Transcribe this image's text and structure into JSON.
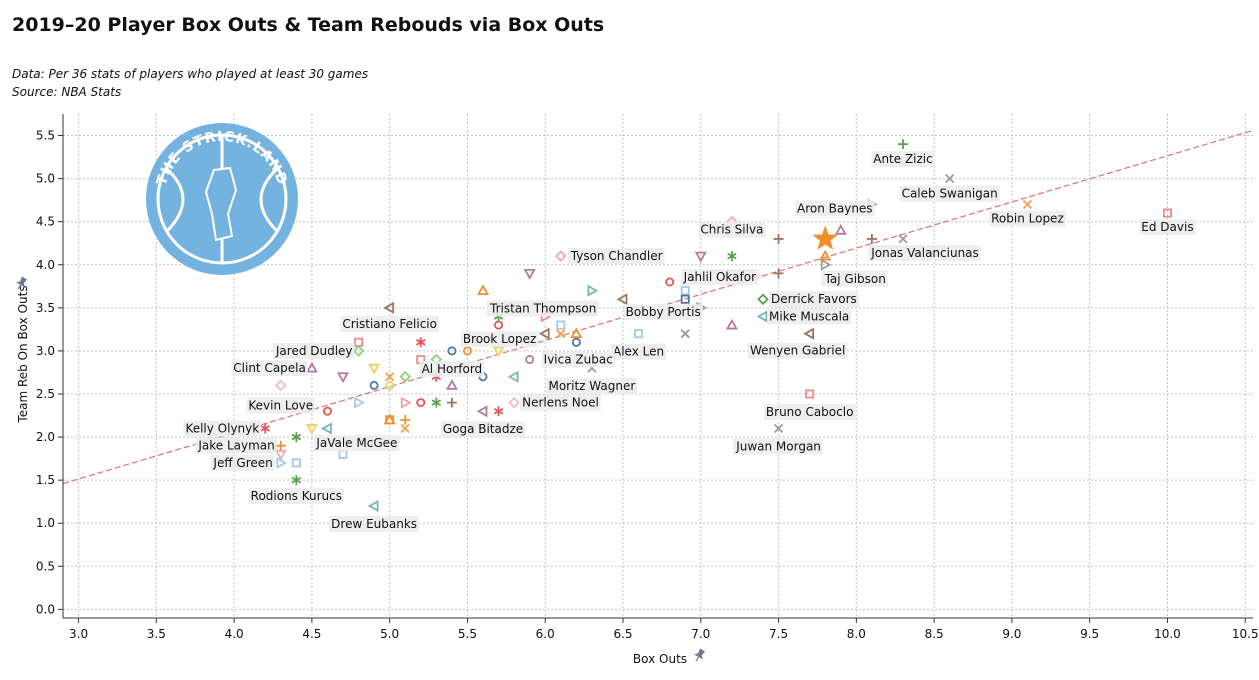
{
  "title": "2019–20 Player Box Outs & Team Rebouds via Box Outs",
  "subtitle_line1": "Data: Per 36 stats of players who played at least 30 games",
  "subtitle_line2": "Source: NBA Stats",
  "logo_text": "THE STRICK.LAND",
  "chart_data": {
    "type": "scatter",
    "xlabel": "Box Outs",
    "ylabel": "Team Reb On Box Outs",
    "xlim": [
      2.9,
      10.55
    ],
    "ylim": [
      -0.1,
      5.75
    ],
    "x_ticks": [
      "3.0",
      "3.5",
      "4.0",
      "4.5",
      "5.0",
      "5.5",
      "6.0",
      "6.5",
      "7.0",
      "7.5",
      "8.0",
      "8.5",
      "9.0",
      "9.5",
      "10.0",
      "10.5"
    ],
    "y_ticks": [
      "0.0",
      "0.5",
      "1.0",
      "1.5",
      "2.0",
      "2.5",
      "3.0",
      "3.5",
      "4.0",
      "4.5",
      "5.0",
      "5.5"
    ],
    "grid": true,
    "trendline": {
      "x": [
        2.9,
        10.55
      ],
      "y": [
        1.46,
        5.56
      ],
      "color": "#e07070"
    },
    "highlight_color": "#f28e2b",
    "labeled_points": [
      {
        "name": "Ante Zizic",
        "x": 8.3,
        "y": 5.4,
        "shape": "plus",
        "color": "#59a14f"
      },
      {
        "name": "Caleb Swanigan",
        "x": 8.6,
        "y": 5.0,
        "shape": "x",
        "color": "#9c9c9c"
      },
      {
        "name": "Robin Lopez",
        "x": 9.1,
        "y": 4.7,
        "shape": "x",
        "color": "#f0a050"
      },
      {
        "name": "Ed Davis",
        "x": 10.0,
        "y": 4.6,
        "shape": "square",
        "color": "#f08a8a"
      },
      {
        "name": "Aron Baynes",
        "x": 7.9,
        "y": 4.4,
        "shape": "triangle-up",
        "color": "#b07aa1"
      },
      {
        "name": "Jonas Valanciunas",
        "x": 8.3,
        "y": 4.3,
        "shape": "x",
        "color": "#9c9c9c"
      },
      {
        "name": "Chris Silva",
        "x": 7.2,
        "y": 4.5,
        "shape": "diamond",
        "color": "#f4a6b8"
      },
      {
        "name": "Taj Gibson",
        "x": 7.8,
        "y": 4.0,
        "shape": "triangle-right",
        "color": "#9c9c9c"
      },
      {
        "name": "Tyson Chandler",
        "x": 6.1,
        "y": 4.1,
        "shape": "diamond",
        "color": "#f4a6b8"
      },
      {
        "name": "Jahlil Okafor",
        "x": 6.8,
        "y": 3.8,
        "shape": "circle",
        "color": "#e15759"
      },
      {
        "name": "Derrick Favors",
        "x": 7.4,
        "y": 3.6,
        "shape": "diamond",
        "color": "#59a14f"
      },
      {
        "name": "Mike Muscala",
        "x": 7.4,
        "y": 3.4,
        "shape": "triangle-left",
        "color": "#76b7b2"
      },
      {
        "name": "Tristan Thompson",
        "x": 6.0,
        "y": 3.4,
        "shape": "triangle-right",
        "color": "#f08a8a"
      },
      {
        "name": "Bobby Portis",
        "x": 6.9,
        "y": 3.6,
        "shape": "square",
        "color": "#4e79a7"
      },
      {
        "name": "Wenyen Gabriel",
        "x": 7.7,
        "y": 3.2,
        "shape": "triangle-left",
        "color": "#9c755f"
      },
      {
        "name": "Cristiano Felicio",
        "x": 5.0,
        "y": 3.5,
        "shape": "triangle-left",
        "color": "#9c755f"
      },
      {
        "name": "Brook Lopez",
        "x": 5.7,
        "y": 3.3,
        "shape": "circle",
        "color": "#e15759"
      },
      {
        "name": "Alex Len",
        "x": 6.6,
        "y": 3.2,
        "shape": "square",
        "color": "#a0cbe8"
      },
      {
        "name": "Jared Dudley",
        "x": 4.8,
        "y": 3.0,
        "shape": "diamond",
        "color": "#8cd17d"
      },
      {
        "name": "Ivica Zubac",
        "x": 5.9,
        "y": 2.9,
        "shape": "circle",
        "color": "#b07aa1"
      },
      {
        "name": "Al Horford",
        "x": 5.4,
        "y": 3.0,
        "shape": "circle",
        "color": "#4e79a7"
      },
      {
        "name": "Clint Capela",
        "x": 4.5,
        "y": 2.8,
        "shape": "triangle-up",
        "color": "#b07aa1"
      },
      {
        "name": "Moritz Wagner",
        "x": 6.3,
        "y": 2.8,
        "shape": "x",
        "color": "#9c9c9c"
      },
      {
        "name": "Kevin Love",
        "x": 4.3,
        "y": 2.6,
        "shape": "diamond",
        "color": "#f4b6c8"
      },
      {
        "name": "Nerlens Noel",
        "x": 5.8,
        "y": 2.4,
        "shape": "diamond",
        "color": "#f4b6c8"
      },
      {
        "name": "Bruno Caboclo",
        "x": 7.7,
        "y": 2.5,
        "shape": "square",
        "color": "#f08a8a"
      },
      {
        "name": "Goga Bitadze",
        "x": 5.6,
        "y": 2.3,
        "shape": "triangle-left",
        "color": "#b07aa1"
      },
      {
        "name": "Kelly Olynyk",
        "x": 4.2,
        "y": 2.1,
        "shape": "asterisk",
        "color": "#e15759"
      },
      {
        "name": "JaVale McGee",
        "x": 4.4,
        "y": 2.0,
        "shape": "asterisk",
        "color": "#59a14f"
      },
      {
        "name": "Juwan Morgan",
        "x": 7.5,
        "y": 2.1,
        "shape": "x",
        "color": "#9c9c9c"
      },
      {
        "name": "Jake Layman",
        "x": 4.3,
        "y": 1.9,
        "shape": "plus",
        "color": "#f28e2b"
      },
      {
        "name": "Jeff Green",
        "x": 4.3,
        "y": 1.7,
        "shape": "triangle-right",
        "color": "#a0cbe8"
      },
      {
        "name": "Rodions Kurucs",
        "x": 4.4,
        "y": 1.5,
        "shape": "asterisk",
        "color": "#59a14f"
      },
      {
        "name": "Drew Eubanks",
        "x": 4.9,
        "y": 1.2,
        "shape": "triangle-left",
        "color": "#76b7b2"
      }
    ],
    "unlabeled_points": [
      {
        "x": 7.8,
        "y": 4.3,
        "shape": "star",
        "color": "#f28e2b"
      },
      {
        "x": 8.1,
        "y": 4.7,
        "shape": "triangle-right",
        "color": "#f0a0a0"
      },
      {
        "x": 8.1,
        "y": 4.3,
        "shape": "plus",
        "color": "#9c755f"
      },
      {
        "x": 7.8,
        "y": 4.1,
        "shape": "triangle-up",
        "color": "#f28e2b"
      },
      {
        "x": 7.5,
        "y": 4.3,
        "shape": "plus",
        "color": "#9c755f"
      },
      {
        "x": 7.5,
        "y": 3.9,
        "shape": "plus",
        "color": "#9c755f"
      },
      {
        "x": 7.2,
        "y": 4.1,
        "shape": "asterisk",
        "color": "#59a14f"
      },
      {
        "x": 7.0,
        "y": 4.1,
        "shape": "triangle-down",
        "color": "#b07aa1"
      },
      {
        "x": 7.0,
        "y": 3.5,
        "shape": "triangle-right",
        "color": "#76b7b2"
      },
      {
        "x": 6.9,
        "y": 3.7,
        "shape": "square",
        "color": "#a0cbe8"
      },
      {
        "x": 6.9,
        "y": 3.2,
        "shape": "x",
        "color": "#9c9c9c"
      },
      {
        "x": 7.2,
        "y": 3.3,
        "shape": "triangle-up",
        "color": "#b07aa1"
      },
      {
        "x": 5.9,
        "y": 3.9,
        "shape": "triangle-down",
        "color": "#b07aa1"
      },
      {
        "x": 6.3,
        "y": 3.7,
        "shape": "triangle-right",
        "color": "#76b7b2"
      },
      {
        "x": 6.5,
        "y": 3.6,
        "shape": "triangle-left",
        "color": "#9c755f"
      },
      {
        "x": 5.6,
        "y": 3.7,
        "shape": "triangle-up",
        "color": "#f28e2b"
      },
      {
        "x": 5.7,
        "y": 3.4,
        "shape": "asterisk",
        "color": "#59a14f"
      },
      {
        "x": 6.1,
        "y": 3.3,
        "shape": "square",
        "color": "#a0cbe8"
      },
      {
        "x": 6.1,
        "y": 3.2,
        "shape": "x",
        "color": "#f0a050"
      },
      {
        "x": 6.0,
        "y": 3.2,
        "shape": "triangle-left",
        "color": "#9c755f"
      },
      {
        "x": 6.2,
        "y": 3.2,
        "shape": "triangle-up",
        "color": "#f28e2b"
      },
      {
        "x": 6.2,
        "y": 3.1,
        "shape": "circle",
        "color": "#4e79a7"
      },
      {
        "x": 5.7,
        "y": 3.0,
        "shape": "triangle-down",
        "color": "#f1ce63"
      },
      {
        "x": 5.5,
        "y": 3.0,
        "shape": "circle",
        "color": "#f28e2b"
      },
      {
        "x": 5.2,
        "y": 3.1,
        "shape": "asterisk",
        "color": "#e15759"
      },
      {
        "x": 5.2,
        "y": 2.9,
        "shape": "square",
        "color": "#f08a8a"
      },
      {
        "x": 5.3,
        "y": 2.9,
        "shape": "diamond",
        "color": "#8cd17d"
      },
      {
        "x": 4.8,
        "y": 3.1,
        "shape": "square",
        "color": "#f08a8a"
      },
      {
        "x": 4.9,
        "y": 2.8,
        "shape": "triangle-down",
        "color": "#f1ce63"
      },
      {
        "x": 4.7,
        "y": 2.7,
        "shape": "triangle-down",
        "color": "#b07aa1"
      },
      {
        "x": 5.0,
        "y": 2.7,
        "shape": "x",
        "color": "#f0a050"
      },
      {
        "x": 5.0,
        "y": 2.6,
        "shape": "circle",
        "color": "#f1ce63"
      },
      {
        "x": 5.1,
        "y": 2.7,
        "shape": "diamond",
        "color": "#8cd17d"
      },
      {
        "x": 5.3,
        "y": 2.7,
        "shape": "asterisk",
        "color": "#e15759"
      },
      {
        "x": 4.9,
        "y": 2.6,
        "shape": "circle",
        "color": "#4e79a7"
      },
      {
        "x": 5.6,
        "y": 2.7,
        "shape": "circle",
        "color": "#4e79a7"
      },
      {
        "x": 5.8,
        "y": 2.7,
        "shape": "triangle-left",
        "color": "#76b7b2"
      },
      {
        "x": 5.4,
        "y": 2.6,
        "shape": "triangle-up",
        "color": "#b07aa1"
      },
      {
        "x": 4.8,
        "y": 2.4,
        "shape": "triangle-right",
        "color": "#a0cbe8"
      },
      {
        "x": 5.1,
        "y": 2.4,
        "shape": "triangle-right",
        "color": "#f0a0a0"
      },
      {
        "x": 5.2,
        "y": 2.4,
        "shape": "circle",
        "color": "#e15759"
      },
      {
        "x": 5.3,
        "y": 2.4,
        "shape": "asterisk",
        "color": "#59a14f"
      },
      {
        "x": 5.4,
        "y": 2.4,
        "shape": "plus",
        "color": "#9c755f"
      },
      {
        "x": 5.7,
        "y": 2.3,
        "shape": "asterisk",
        "color": "#e15759"
      },
      {
        "x": 4.6,
        "y": 2.3,
        "shape": "circle",
        "color": "#e15759"
      },
      {
        "x": 5.0,
        "y": 2.2,
        "shape": "square",
        "color": "#f28e2b"
      },
      {
        "x": 5.0,
        "y": 2.2,
        "shape": "triangle-up",
        "color": "#f28e2b"
      },
      {
        "x": 5.1,
        "y": 2.2,
        "shape": "plus",
        "color": "#f28e2b"
      },
      {
        "x": 5.1,
        "y": 2.1,
        "shape": "x",
        "color": "#f0a050"
      },
      {
        "x": 4.5,
        "y": 2.1,
        "shape": "triangle-down",
        "color": "#f1ce63"
      },
      {
        "x": 4.6,
        "y": 2.1,
        "shape": "triangle-left",
        "color": "#76b7b2"
      },
      {
        "x": 4.3,
        "y": 1.8,
        "shape": "triangle-down",
        "color": "#f4a6b8"
      },
      {
        "x": 4.4,
        "y": 1.7,
        "shape": "square",
        "color": "#a0cbe8"
      },
      {
        "x": 4.7,
        "y": 1.8,
        "shape": "square",
        "color": "#a0cbe8"
      }
    ]
  }
}
